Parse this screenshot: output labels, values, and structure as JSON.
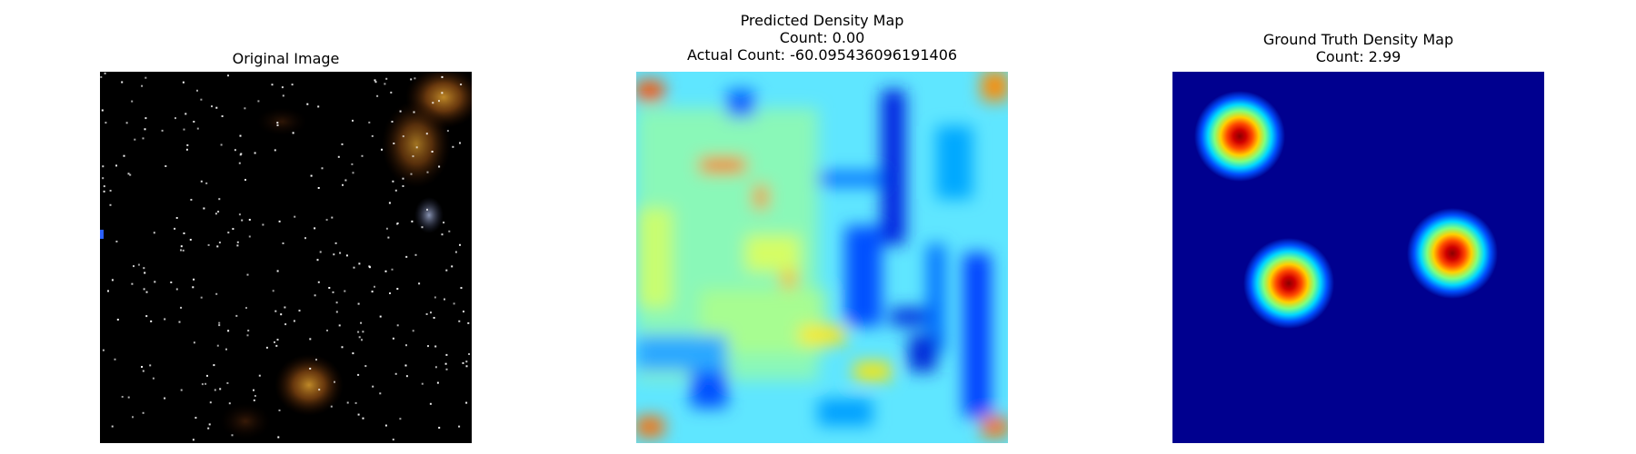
{
  "panels": {
    "original": {
      "title": "Original Image"
    },
    "predicted": {
      "title_line1": "Predicted Density Map",
      "title_line2": "Count: 0.00",
      "title_line3": "Actual Count: -60.095436096191406"
    },
    "ground_truth": {
      "title_line1": "Ground Truth Density Map",
      "title_line2": "Count: 2.99"
    }
  },
  "colors": {
    "background": "#ffffff",
    "original_bg": "#000000",
    "jet_dark_blue": "#00008f",
    "jet_blue": "#0050ff",
    "jet_cyan": "#00d8ff",
    "jet_green": "#7fff7f",
    "jet_yellow": "#ffe600",
    "jet_orange": "#ff6a00",
    "jet_red": "#b40000"
  }
}
